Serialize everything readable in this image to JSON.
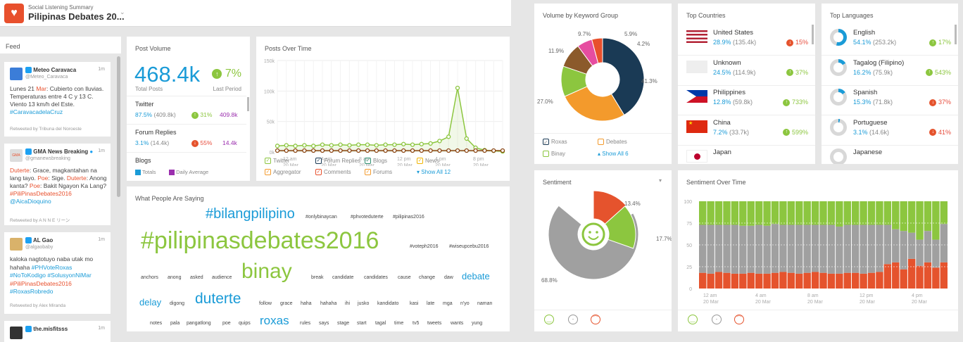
{
  "header": {
    "subtitle": "Social Listening Summary",
    "title": "Pilipinas Debates 20..."
  },
  "colors": {
    "accent": "#e8502d",
    "green": "#8cc63f",
    "blue": "#1a9bd7"
  },
  "feed": {
    "title": "Feed",
    "items": [
      {
        "name": "Meteo Caravaca",
        "handle": "@Meteo_Caravaca",
        "time": "1m",
        "t1": "Lunes 21 ",
        "t1h": "Mar",
        "t2": ": Cubierto con lluvias. Temperaturas entre 4 C y 13 C. Viento 13 km/h del Este.",
        "tag": "#CaravacadelaCruz",
        "rt": "Retweeted by Tribuna del Noroeste"
      },
      {
        "name": "GMA News Breaking",
        "handle": "@gmanewsbreaking",
        "time": "1m",
        "text": [
          "Duterte",
          ": Grace, magkantahan na lang tayo. ",
          "Poe",
          ": Sige. ",
          "Duterte",
          ": Anong kanta? ",
          "Poe",
          ": Bakit Ngayon Ka Lang? ",
          "#PiliPinasDebates2016"
        ],
        "mention": "@AicaDioquino",
        "rt": "Retweeted by A N N E リーン"
      },
      {
        "name": "AL Gao",
        "handle": "@algaobaby",
        "time": "1m",
        "t1": "kaloka nagtotuyo naba utak mo hahaha ",
        "tags": [
          "#PHVoteRoxas",
          "#NoToKodigo",
          "#SolusyonNiMar"
        ],
        "tagh": "#PiliPinasDebates2016",
        "tag2": "#RoxasRobredo",
        "rt": "Retweeted by Alex Miranda"
      },
      {
        "name": "the.misfitsss",
        "time": "1m"
      }
    ]
  },
  "post_volume": {
    "title": "Post Volume",
    "total": "468.4k",
    "total_label": "Total Posts",
    "change": "7%",
    "change_label": "Last Period",
    "rows": [
      {
        "name": "Twitter",
        "pct": "87.5%",
        "abs": "(409.8k)",
        "chg": "31%",
        "dir": "up",
        "avg": "409.8k"
      },
      {
        "name": "Forum Replies",
        "pct": "3.1%",
        "abs": "(14.4k)",
        "chg": "55%",
        "dir": "down",
        "avg": "14.4k"
      },
      {
        "name": "Blogs"
      }
    ],
    "legend_totals": "Totals",
    "legend_avg": "Daily Average"
  },
  "posts_over_time": {
    "title": "Posts Over Time",
    "legend": [
      "Twitter",
      "Forum Replies",
      "Blogs",
      "News",
      "Aggregator",
      "Comments",
      "Forums"
    ],
    "show_all": "Show All 12"
  },
  "chart_data": [
    {
      "type": "line",
      "title": "Posts Over Time",
      "y_ticks": [
        "150k",
        "100k",
        "50k",
        "0k"
      ],
      "ylim": [
        0,
        150000
      ],
      "x_ticks": [
        [
          "12 am",
          "20 Mar"
        ],
        [
          "4 am",
          "20 Mar"
        ],
        [
          "8 am",
          "20 Mar"
        ],
        [
          "12 pm",
          "20 Mar"
        ],
        [
          "4 pm",
          "20 Mar"
        ],
        [
          "8 pm",
          "20 Mar"
        ]
      ],
      "series": [
        {
          "name": "Twitter",
          "values": [
            10000,
            11000,
            10000,
            11000,
            10000,
            12000,
            11000,
            12000,
            11000,
            12000,
            12000,
            11000,
            12000,
            12000,
            13000,
            12000,
            13000,
            14000,
            18000,
            25000,
            105000,
            22000,
            7000,
            3000,
            2000,
            1000
          ]
        },
        {
          "name": "Comments",
          "values": [
            0,
            0,
            0,
            0,
            0,
            0,
            0,
            0,
            0,
            0,
            0,
            0,
            0,
            0,
            0,
            0,
            0,
            0,
            0,
            0,
            0,
            0,
            0,
            0,
            0,
            0
          ]
        }
      ]
    },
    {
      "type": "pie",
      "title": "Volume by Keyword Group",
      "labels": [
        "41.3%",
        "27.0%",
        "11.9%",
        "9.7%",
        "5.9%",
        "4.2%"
      ],
      "values": [
        41.3,
        27.0,
        11.9,
        9.7,
        5.9,
        4.2
      ]
    },
    {
      "type": "pie",
      "title": "Sentiment",
      "labels": [
        "68.8%",
        "13.4%",
        "17.7%"
      ],
      "values": [
        68.8,
        13.4,
        17.7
      ]
    },
    {
      "type": "bar",
      "title": "Sentiment Over Time",
      "y_ticks": [
        "100",
        "75",
        "50",
        "25",
        "0"
      ],
      "x_ticks": [
        [
          "12 am",
          "20 Mar"
        ],
        [
          "4 am",
          "20 Mar"
        ],
        [
          "8 am",
          "20 Mar"
        ],
        [
          "12 pm",
          "20 Mar"
        ],
        [
          "4 pm",
          "20 Mar"
        ]
      ],
      "negative": [
        18,
        17,
        19,
        18,
        17,
        17,
        18,
        17,
        17,
        18,
        19,
        18,
        17,
        18,
        19,
        18,
        17,
        17,
        18,
        18,
        17,
        18,
        19,
        28,
        30,
        22,
        34,
        26,
        30,
        24,
        30
      ],
      "neutral": [
        55,
        56,
        54,
        55,
        56,
        55,
        54,
        56,
        55,
        56,
        54,
        55,
        56,
        55,
        54,
        55,
        56,
        54,
        55,
        55,
        56,
        55,
        54,
        45,
        38,
        44,
        30,
        30,
        36,
        32,
        44
      ]
    }
  ],
  "keyword": {
    "title": "Volume by Keyword Group",
    "legend": [
      "Roxas",
      "Debates",
      "Binay"
    ],
    "show_all": "Show All 6"
  },
  "countries": {
    "title": "Top Countries",
    "items": [
      {
        "name": "United States",
        "pct": "28.9%",
        "abs": "(135.4k)",
        "chg": "15%",
        "dir": "down"
      },
      {
        "name": "Unknown",
        "pct": "24.5%",
        "abs": "(114.9k)",
        "chg": "37%",
        "dir": "up"
      },
      {
        "name": "Philippines",
        "pct": "12.8%",
        "abs": "(59.8k)",
        "chg": "733%",
        "dir": "up"
      },
      {
        "name": "China",
        "pct": "7.2%",
        "abs": "(33.7k)",
        "chg": "599%",
        "dir": "up"
      },
      {
        "name": "Japan"
      }
    ]
  },
  "languages": {
    "title": "Top Languages",
    "items": [
      {
        "name": "English",
        "pct": "54.1%",
        "abs": "(253.2k)",
        "chg": "17%",
        "dir": "up",
        "fill": 54.1
      },
      {
        "name": "Tagalog (Filipino)",
        "pct": "16.2%",
        "abs": "(75.9k)",
        "chg": "543%",
        "dir": "up",
        "fill": 16.2
      },
      {
        "name": "Spanish",
        "pct": "15.3%",
        "abs": "(71.8k)",
        "chg": "37%",
        "dir": "down",
        "fill": 15.3
      },
      {
        "name": "Portuguese",
        "pct": "3.1%",
        "abs": "(14.6k)",
        "chg": "41%",
        "dir": "down",
        "fill": 3.1
      },
      {
        "name": "Japanese"
      }
    ]
  },
  "sentiment": {
    "title": "Sentiment"
  },
  "sentiment_time": {
    "title": "Sentiment Over Time"
  },
  "words": {
    "title": "What People Are Saying",
    "list": [
      {
        "t": "#bilangpilipino",
        "c": "#1a9bd7"
      },
      {
        "t": "#onlybinaycan",
        "c": "#444"
      },
      {
        "t": "#phvoteduterte",
        "c": "#444"
      },
      {
        "t": "#pilipinas2016",
        "c": "#444"
      },
      {
        "t": "#pilipinasdebates2016",
        "c": "#8cc63f"
      },
      {
        "t": "#voteph2016",
        "c": "#444"
      },
      {
        "t": "#wiseupcebu2016",
        "c": "#444"
      },
      {
        "t": "anchors",
        "c": "#444"
      },
      {
        "t": "anong",
        "c": "#444"
      },
      {
        "t": "asked",
        "c": "#444"
      },
      {
        "t": "audience",
        "c": "#444"
      },
      {
        "t": "binay",
        "c": "#8cc63f"
      },
      {
        "t": "break",
        "c": "#444"
      },
      {
        "t": "candidate",
        "c": "#444"
      },
      {
        "t": "candidates",
        "c": "#444"
      },
      {
        "t": "cause",
        "c": "#444"
      },
      {
        "t": "change",
        "c": "#444"
      },
      {
        "t": "daw",
        "c": "#444"
      },
      {
        "t": "debate",
        "c": "#1a9bd7"
      },
      {
        "t": "delay",
        "c": "#1a9bd7"
      },
      {
        "t": "digong",
        "c": "#444"
      },
      {
        "t": "duterte",
        "c": "#1a9bd7"
      },
      {
        "t": "follow",
        "c": "#444"
      },
      {
        "t": "grace",
        "c": "#444"
      },
      {
        "t": "haha",
        "c": "#444"
      },
      {
        "t": "hahaha",
        "c": "#444"
      },
      {
        "t": "ihi",
        "c": "#444"
      },
      {
        "t": "jusko",
        "c": "#444"
      },
      {
        "t": "kandidato",
        "c": "#444"
      },
      {
        "t": "kasi",
        "c": "#444"
      },
      {
        "t": "late",
        "c": "#444"
      },
      {
        "t": "mga",
        "c": "#444"
      },
      {
        "t": "n'yo",
        "c": "#444"
      },
      {
        "t": "naman",
        "c": "#444"
      },
      {
        "t": "notes",
        "c": "#444"
      },
      {
        "t": "pala",
        "c": "#444"
      },
      {
        "t": "pangatlong",
        "c": "#444"
      },
      {
        "t": "poe",
        "c": "#444"
      },
      {
        "t": "quips",
        "c": "#444"
      },
      {
        "t": "roxas",
        "c": "#1a9bd7"
      },
      {
        "t": "rules",
        "c": "#444"
      },
      {
        "t": "says",
        "c": "#444"
      },
      {
        "t": "stage",
        "c": "#444"
      },
      {
        "t": "start",
        "c": "#444"
      },
      {
        "t": "tagal",
        "c": "#444"
      },
      {
        "t": "time",
        "c": "#444"
      },
      {
        "t": "tv5",
        "c": "#444"
      },
      {
        "t": "tweets",
        "c": "#444"
      },
      {
        "t": "wants",
        "c": "#444"
      },
      {
        "t": "yung",
        "c": "#444"
      }
    ]
  }
}
